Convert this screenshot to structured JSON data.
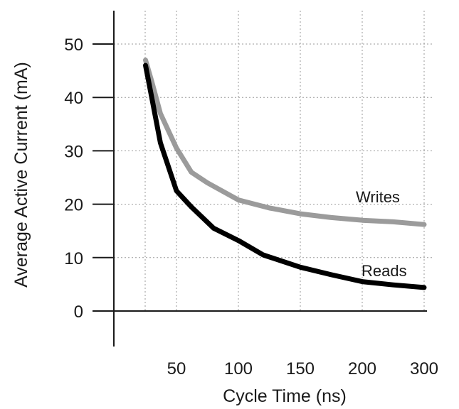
{
  "chart_data": {
    "type": "line",
    "xlabel": "Cycle Time (ns)",
    "ylabel": "Average Active Current (mA)",
    "x_ticks": [
      "50",
      "100",
      "150",
      "200",
      "300"
    ],
    "y_ticks": [
      0,
      10,
      20,
      30,
      40,
      50
    ],
    "ylim": [
      0,
      50
    ],
    "grid": true,
    "series": [
      {
        "name": "Writes",
        "color": "#9b9b9b",
        "points": [
          [
            25,
            47
          ],
          [
            30,
            43
          ],
          [
            37,
            37
          ],
          [
            50,
            30.5
          ],
          [
            62,
            26
          ],
          [
            75,
            24
          ],
          [
            100,
            20.8
          ],
          [
            125,
            19.3
          ],
          [
            150,
            18.2
          ],
          [
            175,
            17.5
          ],
          [
            200,
            17
          ],
          [
            250,
            16.7
          ],
          [
            300,
            16.2
          ]
        ]
      },
      {
        "name": "Reads",
        "color": "#000000",
        "points": [
          [
            25,
            46
          ],
          [
            30,
            40
          ],
          [
            37,
            31.5
          ],
          [
            50,
            22.5
          ],
          [
            62,
            19.5
          ],
          [
            80,
            15.5
          ],
          [
            100,
            13.2
          ],
          [
            120,
            10.5
          ],
          [
            150,
            8.2
          ],
          [
            175,
            6.8
          ],
          [
            200,
            5.5
          ],
          [
            250,
            4.9
          ],
          [
            300,
            4.4
          ]
        ]
      }
    ]
  }
}
